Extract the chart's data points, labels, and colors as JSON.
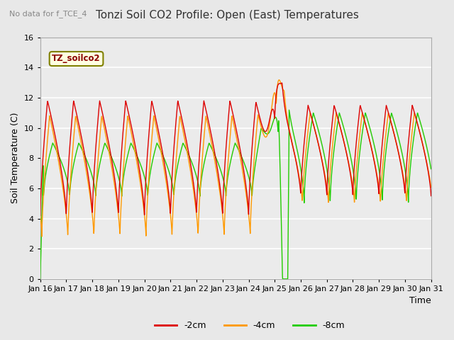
{
  "title": "Tonzi Soil CO2 Profile: Open (East) Temperatures",
  "subtitle": "No data for f_TCE_4",
  "xlabel": "Time",
  "ylabel": "Soil Temperature (C)",
  "legend_label": "TZ_soilco2",
  "ylim": [
    0,
    16
  ],
  "series_labels": [
    "-2cm",
    "-4cm",
    "-8cm"
  ],
  "series_colors": [
    "#dd0000",
    "#ff9900",
    "#22cc00"
  ],
  "x_tick_labels": [
    "Jan 16",
    "Jan 17",
    "Jan 18",
    "Jan 19",
    "Jan 20",
    "Jan 21",
    "Jan 22",
    "Jan 23",
    "Jan 24",
    "Jan 25",
    "Jan 26",
    "Jan 27",
    "Jan 28",
    "Jan 29",
    "Jan 30",
    "Jan 31"
  ],
  "background_color": "#e8e8e8",
  "plot_bg_color": "#ebebeb",
  "grid_color": "#ffffff",
  "title_fontsize": 11,
  "label_fontsize": 9,
  "tick_fontsize": 8
}
